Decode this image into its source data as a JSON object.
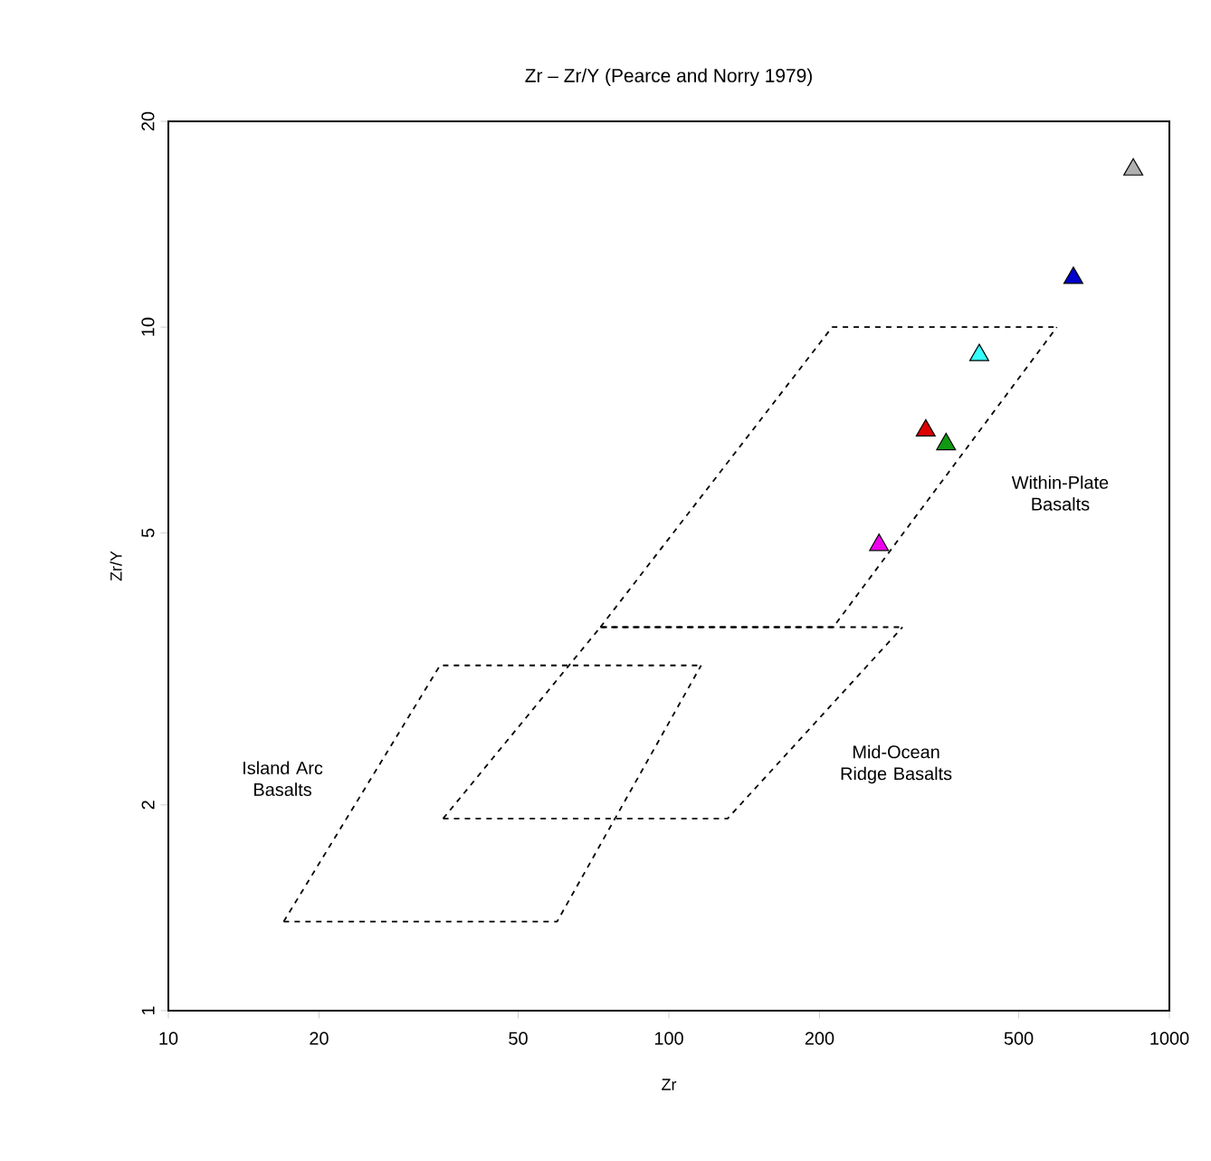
{
  "chart_data": {
    "type": "scatter",
    "title": "Zr – Zr/Y (Pearce and Norry 1979)",
    "xlabel": "Zr",
    "ylabel": "Zr/Y",
    "log": "xy",
    "xlim": [
      10,
      1000
    ],
    "ylim": [
      1,
      20
    ],
    "xticks": [
      10,
      20,
      50,
      100,
      200,
      500,
      1000
    ],
    "yticks": [
      1,
      2,
      5,
      10,
      20
    ],
    "series": [
      {
        "marker": "triangle",
        "color": "#b0b0b0",
        "x": [
          847
        ],
        "values": [
          17.0
        ]
      },
      {
        "marker": "triangle",
        "color": "#0000cc",
        "x": [
          643
        ],
        "values": [
          11.8
        ]
      },
      {
        "marker": "triangle",
        "color": "#33ffff",
        "x": [
          417
        ],
        "values": [
          9.1
        ]
      },
      {
        "marker": "triangle",
        "color": "#dd0000",
        "x": [
          326
        ],
        "values": [
          7.06
        ]
      },
      {
        "marker": "triangle",
        "color": "#119911",
        "x": [
          358
        ],
        "values": [
          6.74
        ]
      },
      {
        "marker": "triangle",
        "color": "#ee00ee",
        "x": [
          263
        ],
        "values": [
          4.8
        ]
      },
      {
        "type": "line",
        "marker": "none",
        "line_style": "dashed",
        "color": "#000000",
        "x": [
          73,
          213,
          596
        ],
        "values": [
          3.64,
          3.64,
          10
        ]
      },
      {
        "type": "line",
        "marker": "none",
        "line_style": "dashed",
        "color": "#000000",
        "x": [
          73,
          212,
          596
        ],
        "values": [
          3.64,
          10,
          10
        ]
      },
      {
        "type": "line",
        "marker": "none",
        "line_style": "dashed",
        "color": "#000000",
        "x": [
          35.4,
          131,
          293
        ],
        "values": [
          1.91,
          1.91,
          3.64
        ]
      },
      {
        "type": "line",
        "marker": "none",
        "line_style": "dashed",
        "color": "#000000",
        "x": [
          35.4,
          73,
          293
        ],
        "values": [
          1.91,
          3.64,
          3.64
        ]
      },
      {
        "type": "line",
        "marker": "none",
        "line_style": "dashed",
        "color": "#000000",
        "x": [
          17.0,
          59.8,
          116
        ],
        "values": [
          1.35,
          1.35,
          3.2
        ]
      },
      {
        "type": "line",
        "marker": "none",
        "line_style": "dashed",
        "color": "#000000",
        "x": [
          17.0,
          34.9,
          116
        ],
        "values": [
          1.35,
          3.2,
          3.2
        ]
      }
    ],
    "annotations": [
      "Island Arc Basalts",
      "Mid-Ocean Ridge Basalts",
      "Within-Plate Basalts"
    ]
  }
}
